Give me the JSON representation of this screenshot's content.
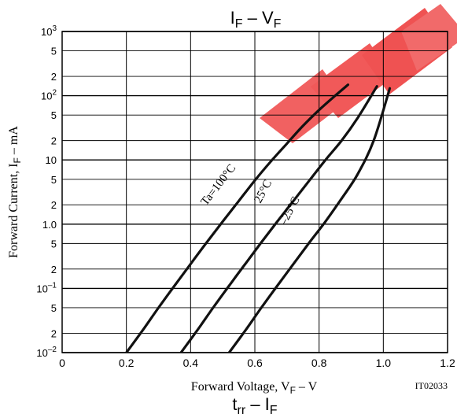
{
  "chart_data": {
    "type": "line",
    "title": "IF – VF",
    "title_parts": {
      "main": "I",
      "sub": "F",
      "mid": " – V",
      "sub2": "F"
    },
    "xlabel": "Forward Voltage, VF – V",
    "xlabel_parts": {
      "pre": "Forward Voltage, V",
      "sub": "F",
      "post": " – V"
    },
    "ylabel": "Forward Current, IF – mA",
    "ylabel_parts": {
      "pre": "Forward Current, I",
      "sub": "F",
      "post": " – mA"
    },
    "xlim": [
      0,
      1.2
    ],
    "ylim": [
      0.01,
      1000
    ],
    "yscale": "log",
    "grid": true,
    "x_ticks": [
      {
        "value": 0,
        "label": "0"
      },
      {
        "value": 0.2,
        "label": "0.2"
      },
      {
        "value": 0.4,
        "label": "0.4"
      },
      {
        "value": 0.6,
        "label": "0.6"
      },
      {
        "value": 0.8,
        "label": "0.8"
      },
      {
        "value": 1.0,
        "label": "1.0"
      },
      {
        "value": 1.2,
        "label": "1.2"
      }
    ],
    "y_ticks": [
      {
        "value": 0.01,
        "base": "10",
        "exp": "–2"
      },
      {
        "value": 0.02,
        "label": "2"
      },
      {
        "value": 0.05,
        "label": "5"
      },
      {
        "value": 0.1,
        "base": "10",
        "exp": "–1"
      },
      {
        "value": 0.2,
        "label": "2"
      },
      {
        "value": 0.5,
        "label": "5"
      },
      {
        "value": 1,
        "label": "1.0"
      },
      {
        "value": 2,
        "label": "2"
      },
      {
        "value": 5,
        "label": "5"
      },
      {
        "value": 10,
        "label": "10"
      },
      {
        "value": 20,
        "label": "2"
      },
      {
        "value": 50,
        "label": "5"
      },
      {
        "value": 100,
        "base": "10",
        "exp": "2"
      },
      {
        "value": 200,
        "label": "2"
      },
      {
        "value": 500,
        "label": "5"
      },
      {
        "value": 1000,
        "base": "10",
        "exp": "3"
      }
    ],
    "series": [
      {
        "name": "Ta=100°C",
        "x": [
          0.2,
          0.25,
          0.3,
          0.35,
          0.4,
          0.45,
          0.5,
          0.55,
          0.6,
          0.65,
          0.7,
          0.75,
          0.8,
          0.85,
          0.89
        ],
        "y": [
          0.01,
          0.022,
          0.05,
          0.11,
          0.24,
          0.52,
          1.1,
          2.3,
          4.8,
          9.5,
          18,
          34,
          60,
          100,
          148
        ]
      },
      {
        "name": "25°C",
        "x": [
          0.37,
          0.42,
          0.47,
          0.52,
          0.57,
          0.62,
          0.67,
          0.72,
          0.77,
          0.82,
          0.87,
          0.92,
          0.98
        ],
        "y": [
          0.01,
          0.022,
          0.05,
          0.11,
          0.24,
          0.52,
          1.1,
          2.3,
          4.8,
          10,
          20,
          45,
          140
        ]
      },
      {
        "name": "–25°C",
        "x": [
          0.52,
          0.57,
          0.62,
          0.67,
          0.72,
          0.77,
          0.82,
          0.87,
          0.92,
          0.97,
          1.02
        ],
        "y": [
          0.01,
          0.022,
          0.05,
          0.11,
          0.24,
          0.52,
          1.1,
          2.5,
          6,
          20,
          130
        ]
      }
    ],
    "annotations": [
      "Ta=100°C",
      "25°C",
      "–25°C"
    ],
    "figure_code": "IT02033",
    "next_title": "trr – IF",
    "next_title_parts": {
      "main": "t",
      "sub": "rr",
      "mid": " – I",
      "sub2": "F"
    },
    "colors": {
      "curve": "#111111",
      "grid": "#000000",
      "watermark": "#ee3333"
    }
  }
}
